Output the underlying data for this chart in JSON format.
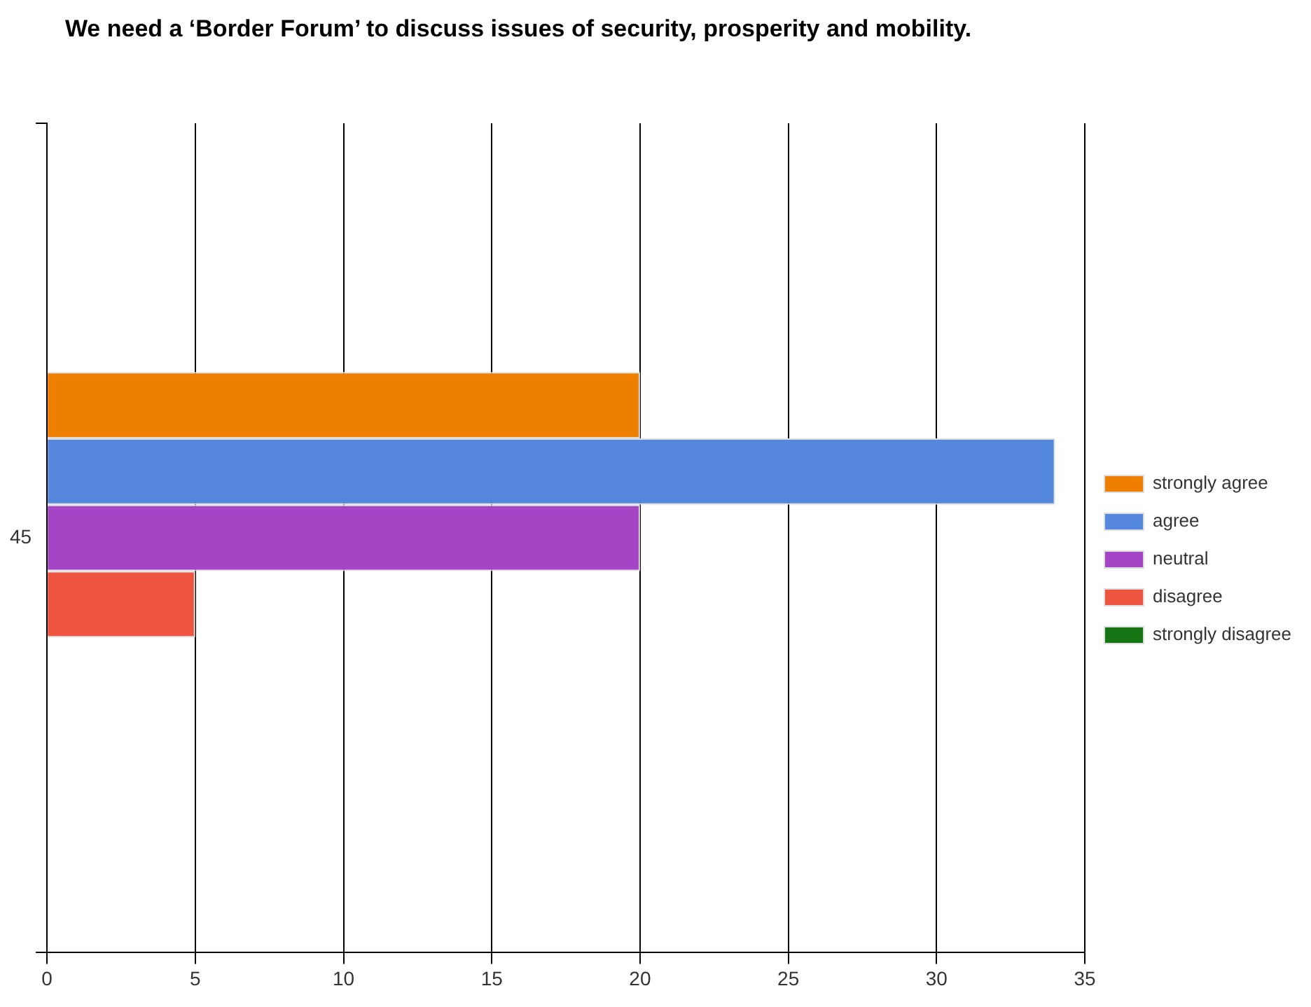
{
  "chart_data": {
    "type": "bar",
    "orientation": "horizontal",
    "title": "We need a ‘Border Forum’ to discuss issues of security, prosperity and mobility.",
    "categories": [
      "45"
    ],
    "series": [
      {
        "name": "strongly agree",
        "color": "#ee7f00",
        "values": [
          20
        ]
      },
      {
        "name": "agree",
        "color": "#5588dd",
        "values": [
          34
        ]
      },
      {
        "name": "neutral",
        "color": "#a544c4",
        "values": [
          20
        ]
      },
      {
        "name": "disagree",
        "color": "#ee5540",
        "values": [
          5
        ]
      },
      {
        "name": "strongly disagree",
        "color": "#157515",
        "values": [
          0
        ]
      }
    ],
    "xlim": [
      0,
      35
    ],
    "xticks": [
      0,
      5,
      10,
      15,
      20,
      25,
      30,
      35
    ],
    "grid": "x",
    "legend": "right"
  }
}
